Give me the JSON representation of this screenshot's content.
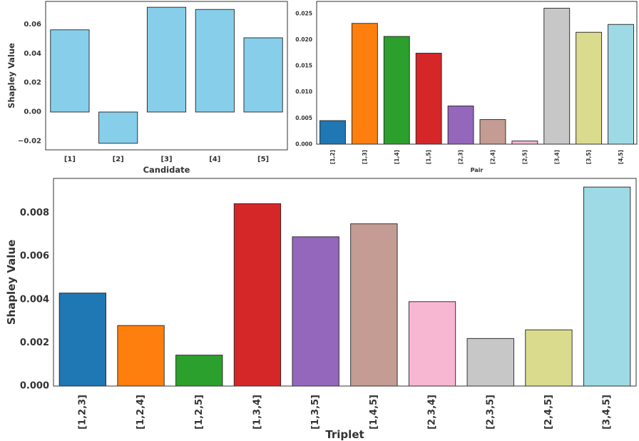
{
  "chart_data": [
    {
      "type": "bar",
      "title": "",
      "xlabel": "Candidate",
      "ylabel": "Shapley Value",
      "categories": [
        "[1]",
        "[2]",
        "[3]",
        "[4]",
        "[5]"
      ],
      "values": [
        0.0565,
        -0.0215,
        0.072,
        0.0705,
        0.051
      ],
      "ylim": [
        -0.026,
        0.076
      ],
      "yticks": [
        -0.02,
        0.0,
        0.02,
        0.04,
        0.06
      ],
      "ytick_labels": [
        "−0.02",
        "0.00",
        "0.02",
        "0.04",
        "0.06"
      ],
      "colors": [
        "#87ceeb",
        "#87ceeb",
        "#87ceeb",
        "#87ceeb",
        "#87ceeb"
      ]
    },
    {
      "type": "bar",
      "title": "",
      "xlabel": "Pair",
      "ylabel": "",
      "categories": [
        "[1,2]",
        "[1,3]",
        "[1,4]",
        "[1,5]",
        "[2,3]",
        "[2,4]",
        "[2,5]",
        "[3,4]",
        "[3,5]",
        "[4,5]"
      ],
      "values": [
        0.0045,
        0.0231,
        0.0206,
        0.0174,
        0.0073,
        0.0047,
        0.0006,
        0.026,
        0.0214,
        0.0229
      ],
      "ylim": [
        0,
        0.0273
      ],
      "yticks": [
        0.0,
        0.005,
        0.01,
        0.015,
        0.02,
        0.025
      ],
      "ytick_labels": [
        "0.000",
        "0.005",
        "0.010",
        "0.015",
        "0.020",
        "0.025"
      ],
      "colors": [
        "#1f77b4",
        "#ff7f0e",
        "#2ca02c",
        "#d62728",
        "#9467bd",
        "#c49c94",
        "#f7b6d2",
        "#c7c7c7",
        "#dbdb8d",
        "#9edae5"
      ]
    },
    {
      "type": "bar",
      "title": "",
      "xlabel": "Triplet",
      "ylabel": "Shapley Value",
      "categories": [
        "[1,2,3]",
        "[1,2,4]",
        "[1,2,5]",
        "[1,3,4]",
        "[1,3,5]",
        "[1,4,5]",
        "[2,3,4]",
        "[2,3,5]",
        "[2,4,5]",
        "[3,4,5]"
      ],
      "values": [
        0.0043,
        0.0028,
        0.00143,
        0.00843,
        0.0069,
        0.0075,
        0.0039,
        0.0022,
        0.0026,
        0.0092
      ],
      "ylim": [
        0,
        0.0096
      ],
      "yticks": [
        0.0,
        0.002,
        0.004,
        0.006,
        0.008
      ],
      "ytick_labels": [
        "0.000",
        "0.002",
        "0.004",
        "0.006",
        "0.008"
      ],
      "colors": [
        "#1f77b4",
        "#ff7f0e",
        "#2ca02c",
        "#d62728",
        "#9467bd",
        "#c49c94",
        "#f7b6d2",
        "#c7c7c7",
        "#dbdb8d",
        "#9edae5"
      ]
    }
  ]
}
